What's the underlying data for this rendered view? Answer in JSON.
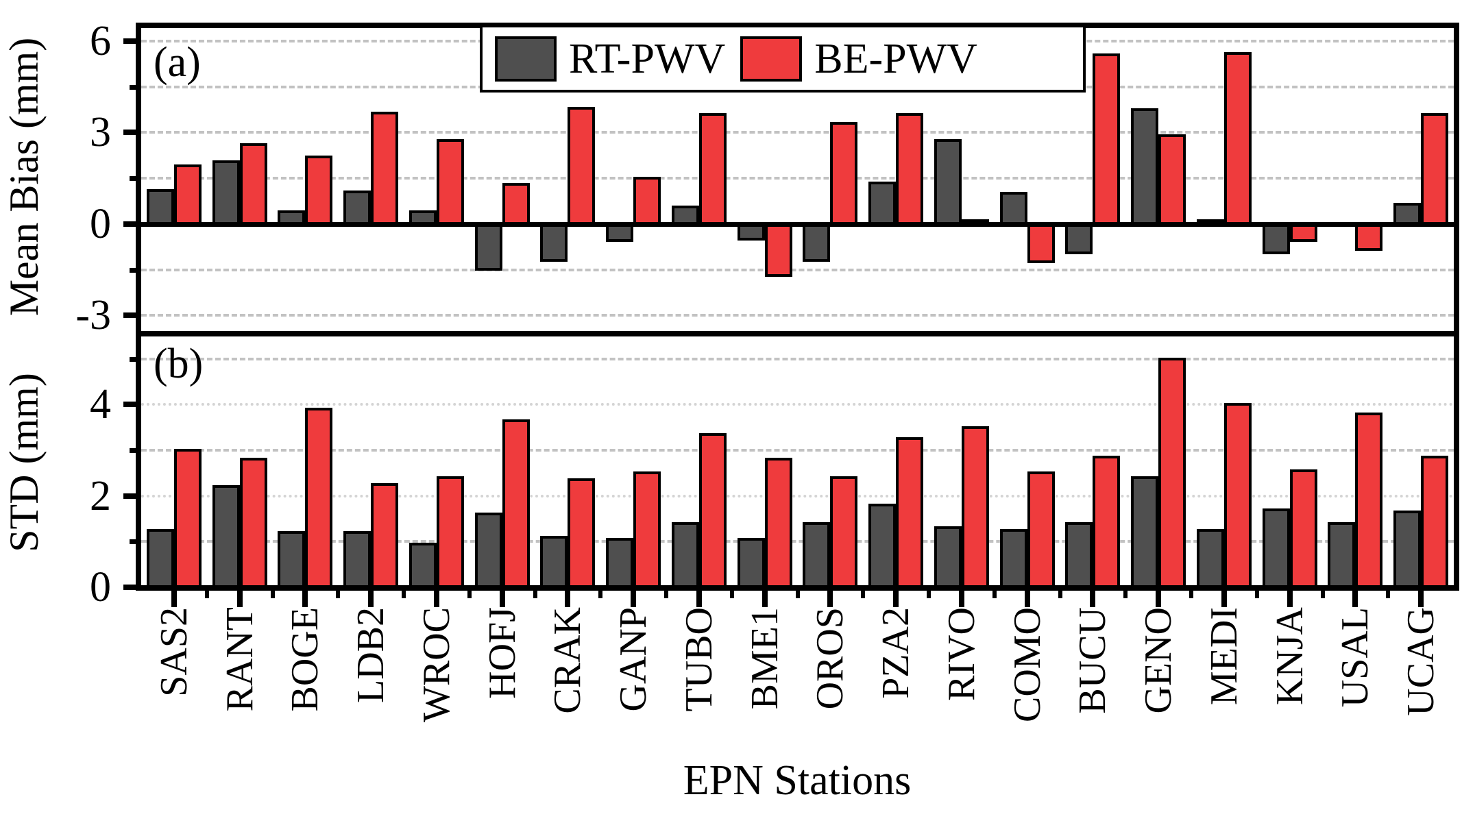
{
  "figure": {
    "xlabel": "EPN Stations",
    "panels": [
      {
        "id": "a",
        "label": "(a)",
        "ylabel": "Mean Bias (mm)"
      },
      {
        "id": "b",
        "label": "(b)",
        "ylabel": "STD (mm)"
      }
    ]
  },
  "legend": {
    "items": [
      {
        "label": "RT-PWV",
        "color": "#4f4f4f"
      },
      {
        "label": "BE-PWV",
        "color": "#ef3b3d"
      }
    ]
  },
  "chart_data": [
    {
      "type": "bar",
      "panel": "a",
      "title": "",
      "xlabel": "EPN Stations",
      "ylabel": "Mean Bias (mm)",
      "categories": [
        "SAS2",
        "RANT",
        "BOGE",
        "LDB2",
        "WROC",
        "HOFJ",
        "CRAK",
        "GANP",
        "TUBO",
        "BME1",
        "OROS",
        "PZA2",
        "RIVO",
        "COMO",
        "BUCU",
        "GENO",
        "MEDI",
        "KNJA",
        "USAL",
        "UCAG"
      ],
      "series": [
        {
          "name": "RT-PWV",
          "color": "#4f4f4f",
          "values": [
            1.1,
            2.05,
            0.4,
            1.05,
            0.4,
            -1.45,
            -1.15,
            -0.5,
            0.55,
            -0.45,
            -1.15,
            1.35,
            2.75,
            1.0,
            -0.9,
            3.75,
            0.1,
            -0.9,
            0.0,
            0.65
          ]
        },
        {
          "name": "BE-PWV",
          "color": "#ef3b3d",
          "values": [
            1.9,
            2.6,
            2.2,
            3.65,
            2.75,
            1.3,
            3.8,
            1.5,
            3.6,
            -1.65,
            3.3,
            3.6,
            0.1,
            -1.2,
            5.55,
            2.9,
            5.6,
            -0.5,
            -0.8,
            3.6
          ]
        }
      ],
      "ylim": [
        -3.6,
        6.45
      ],
      "yticks_major": [
        {
          "v": 6,
          "label": "6"
        },
        {
          "v": 3,
          "label": "3"
        },
        {
          "v": 0,
          "label": "0"
        },
        {
          "v": -3,
          "label": "-3"
        }
      ],
      "yticks_minor": [
        4.5,
        1.5,
        -1.5
      ],
      "grid_dashed": [
        6,
        4.5,
        3,
        1.5,
        -1.5,
        -3
      ],
      "grid_dotted": [],
      "legend_position": "top-center",
      "grid": "on"
    },
    {
      "type": "bar",
      "panel": "b",
      "title": "",
      "xlabel": "EPN Stations",
      "ylabel": "STD (mm)",
      "categories": [
        "SAS2",
        "RANT",
        "BOGE",
        "LDB2",
        "WROC",
        "HOFJ",
        "CRAK",
        "GANP",
        "TUBO",
        "BME1",
        "OROS",
        "PZA2",
        "RIVO",
        "COMO",
        "BUCU",
        "GENO",
        "MEDI",
        "KNJA",
        "USAL",
        "UCAG"
      ],
      "series": [
        {
          "name": "RT-PWV",
          "color": "#4f4f4f",
          "values": [
            1.25,
            2.2,
            1.2,
            1.2,
            0.95,
            1.6,
            1.1,
            1.05,
            1.4,
            1.05,
            1.4,
            1.8,
            1.3,
            1.25,
            1.4,
            2.4,
            1.25,
            1.7,
            1.4,
            1.65
          ]
        },
        {
          "name": "BE-PWV",
          "color": "#ef3b3d",
          "values": [
            3.0,
            2.8,
            3.9,
            2.25,
            2.4,
            3.65,
            2.35,
            2.5,
            3.35,
            2.8,
            2.4,
            3.25,
            3.5,
            2.5,
            2.85,
            5.0,
            4.0,
            2.55,
            3.8,
            2.85
          ]
        }
      ],
      "ylim": [
        0,
        5.55
      ],
      "yticks_major": [
        {
          "v": 4,
          "label": "4"
        },
        {
          "v": 2,
          "label": "2"
        },
        {
          "v": 0,
          "label": "0"
        }
      ],
      "yticks_minor": [
        5,
        3,
        1
      ],
      "grid_dashed": [
        5,
        3,
        1
      ],
      "grid_dotted": [
        4,
        2
      ],
      "legend_position": "none",
      "grid": "on"
    }
  ]
}
